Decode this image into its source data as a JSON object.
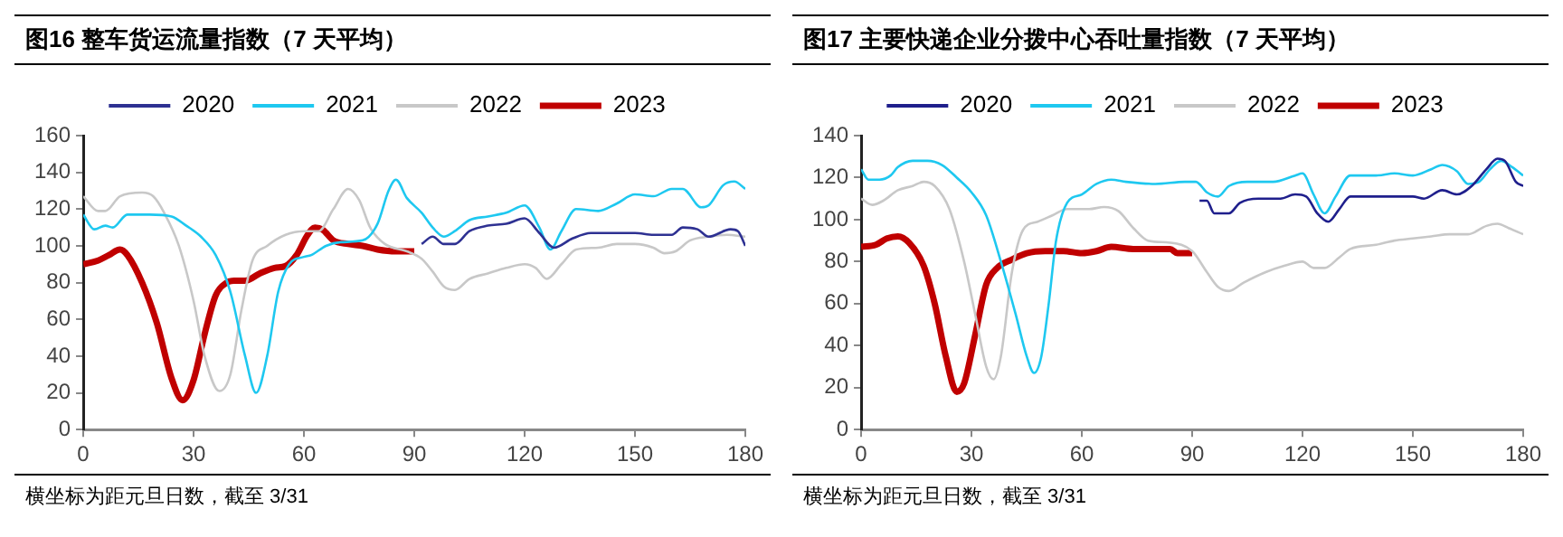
{
  "chart_data": [
    {
      "type": "line",
      "title": "图16 整车货运流量指数（7 天平均）",
      "annotations": [
        "横坐标为距元旦日数，截至 3/31"
      ],
      "xlim": [
        0,
        180
      ],
      "xticks": [
        0,
        30,
        60,
        90,
        120,
        150,
        180
      ],
      "ylim": [
        0,
        160
      ],
      "yticks": [
        0,
        20,
        40,
        60,
        80,
        100,
        120,
        140,
        160
      ],
      "grid": false,
      "legend": "top",
      "marker": "none",
      "line_style": "solid",
      "series": [
        {
          "name": "2020",
          "color": "#2e3192",
          "x": [
            92,
            95,
            98,
            101,
            105,
            110,
            115,
            120,
            124,
            128,
            133,
            138,
            145,
            150,
            155,
            160,
            163,
            167,
            170,
            176,
            178,
            180
          ],
          "values": [
            101,
            105,
            101,
            101,
            108,
            111,
            112,
            115,
            107,
            99,
            104,
            107,
            107,
            107,
            106,
            106,
            110,
            109,
            105,
            109,
            108,
            100
          ]
        },
        {
          "name": "2021",
          "color": "#1ec8f0",
          "x": [
            0,
            3,
            6,
            8,
            12,
            18,
            24,
            28,
            32,
            36,
            40,
            44,
            47,
            50,
            53,
            56,
            60,
            62,
            66,
            70,
            76,
            80,
            83,
            85,
            88,
            92,
            95,
            98,
            101,
            105,
            110,
            115,
            120,
            124,
            127,
            130,
            134,
            140,
            145,
            150,
            155,
            160,
            163,
            168,
            170,
            174,
            177,
            180
          ],
          "values": [
            117,
            109,
            111,
            110,
            117,
            117,
            116,
            111,
            105,
            95,
            75,
            40,
            20,
            40,
            75,
            90,
            94,
            95,
            100,
            102,
            103,
            112,
            130,
            136,
            126,
            118,
            110,
            105,
            108,
            114,
            116,
            118,
            122,
            110,
            98,
            108,
            120,
            119,
            123,
            128,
            127,
            131,
            131,
            121,
            122,
            133,
            135,
            131
          ]
        },
        {
          "name": "2022",
          "color": "#c8c8c8",
          "x": [
            0,
            4,
            6,
            10,
            16,
            19,
            22,
            26,
            30,
            33,
            37,
            40,
            43,
            46,
            50,
            55,
            60,
            64,
            68,
            72,
            75,
            78,
            82,
            88,
            92,
            95,
            98,
            101,
            105,
            110,
            115,
            120,
            123,
            126,
            130,
            134,
            140,
            145,
            150,
            155,
            158,
            161,
            165,
            170,
            175,
            180
          ],
          "values": [
            127,
            119,
            119,
            127,
            129,
            127,
            118,
            100,
            70,
            40,
            21,
            30,
            65,
            92,
            100,
            106,
            108,
            108,
            120,
            131,
            125,
            110,
            101,
            97,
            93,
            86,
            78,
            76,
            82,
            85,
            88,
            90,
            88,
            82,
            90,
            98,
            99,
            101,
            101,
            99,
            96,
            97,
            103,
            105,
            106,
            105
          ]
        },
        {
          "name": "2023",
          "color": "#c00000",
          "x": [
            0,
            4,
            7,
            10,
            12,
            16,
            20,
            24,
            27,
            30,
            33,
            36,
            39,
            41,
            44,
            48,
            52,
            55,
            58,
            61,
            63,
            65,
            68,
            72,
            76,
            80,
            85,
            90
          ],
          "values": [
            90,
            92,
            95,
            98,
            95,
            80,
            58,
            28,
            16,
            27,
            52,
            73,
            80,
            81,
            81,
            85,
            88,
            89,
            95,
            106,
            110,
            109,
            103,
            101,
            100,
            98,
            97,
            97
          ]
        }
      ]
    },
    {
      "type": "line",
      "title": "图17 主要快递企业分拨中心吞吐量指数（7 天平均）",
      "annotations": [
        "横坐标为距元旦日数，截至 3/31"
      ],
      "xlim": [
        0,
        180
      ],
      "xticks": [
        0,
        30,
        60,
        90,
        120,
        150,
        180
      ],
      "ylim": [
        0,
        140
      ],
      "yticks": [
        0,
        20,
        40,
        60,
        80,
        100,
        120,
        140
      ],
      "grid": false,
      "legend": "top",
      "marker": "none",
      "line_style": "solid",
      "series": [
        {
          "name": "2020",
          "color": "#1f1f8c",
          "x": [
            92,
            94,
            96,
            100,
            103,
            108,
            114,
            118,
            121,
            124,
            127,
            130,
            133,
            138,
            145,
            150,
            153,
            158,
            162,
            166,
            170,
            173,
            175,
            178,
            180
          ],
          "values": [
            109,
            109,
            103,
            103,
            108,
            110,
            110,
            112,
            111,
            103,
            99,
            105,
            111,
            111,
            111,
            111,
            110,
            114,
            112,
            116,
            124,
            129,
            128,
            118,
            116
          ]
        },
        {
          "name": "2021",
          "color": "#1ec8f0",
          "x": [
            0,
            2,
            5,
            8,
            10,
            14,
            18,
            22,
            26,
            30,
            34,
            38,
            42,
            45,
            47,
            49,
            51,
            53,
            56,
            60,
            64,
            68,
            72,
            80,
            88,
            91,
            94,
            97,
            100,
            105,
            112,
            118,
            120,
            123,
            126,
            129,
            133,
            140,
            145,
            150,
            155,
            158,
            162,
            165,
            168,
            171,
            174,
            177,
            180
          ],
          "values": [
            124,
            119,
            119,
            121,
            125,
            128,
            128,
            126,
            120,
            113,
            102,
            80,
            55,
            35,
            27,
            35,
            60,
            90,
            108,
            112,
            117,
            119,
            118,
            117,
            118,
            118,
            113,
            111,
            116,
            118,
            118,
            121,
            122,
            112,
            103,
            111,
            121,
            121,
            122,
            121,
            124,
            126,
            123,
            117,
            118,
            124,
            128,
            125,
            121
          ]
        },
        {
          "name": "2022",
          "color": "#c8c8c8",
          "x": [
            0,
            3,
            6,
            10,
            14,
            17,
            20,
            24,
            28,
            31,
            34,
            36,
            38,
            41,
            44,
            48,
            52,
            56,
            62,
            66,
            70,
            74,
            78,
            84,
            90,
            94,
            97,
            100,
            104,
            110,
            115,
            120,
            123,
            126,
            130,
            133,
            140,
            145,
            150,
            155,
            160,
            165,
            170,
            173,
            176,
            180
          ],
          "values": [
            110,
            107,
            109,
            114,
            116,
            118,
            116,
            105,
            80,
            55,
            30,
            24,
            35,
            75,
            95,
            99,
            102,
            105,
            105,
            106,
            104,
            96,
            90,
            89,
            85,
            75,
            68,
            66,
            70,
            75,
            78,
            80,
            77,
            77,
            82,
            86,
            88,
            90,
            91,
            92,
            93,
            93,
            97,
            98,
            96,
            93
          ]
        },
        {
          "name": "2023",
          "color": "#c00000",
          "x": [
            0,
            4,
            7,
            10,
            13,
            17,
            20,
            23,
            26,
            28,
            31,
            34,
            37,
            41,
            45,
            50,
            55,
            60,
            64,
            68,
            74,
            80,
            84,
            86,
            90
          ],
          "values": [
            87,
            88,
            91,
            92,
            89,
            78,
            60,
            35,
            18,
            22,
            45,
            69,
            77,
            81,
            84,
            85,
            85,
            84,
            85,
            87,
            86,
            86,
            86,
            84,
            84
          ]
        }
      ]
    }
  ]
}
